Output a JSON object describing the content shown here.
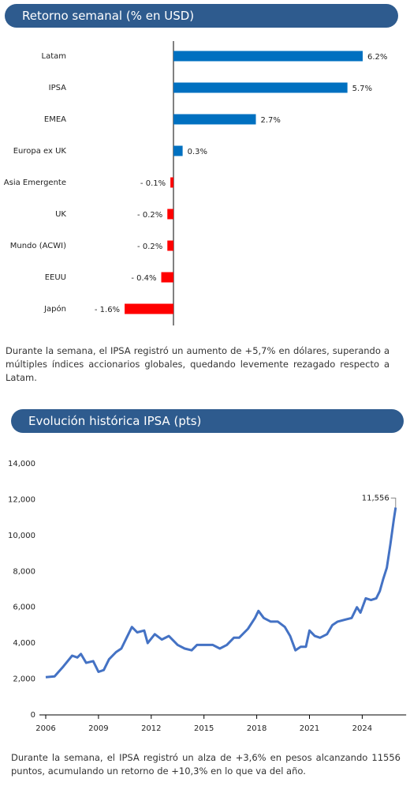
{
  "headers": [
    "Retorno semanal (% en USD)",
    "Evolución histórica IPSA (pts)"
  ],
  "paragraphs": [
    "Durante la semana, el IPSA registró un aumento de +5,7% en dólares, superando a múltiples índices accionarios globales, quedando levemente rezagado respecto a Latam.",
    "Durante la semana, el IPSA registró un alza de +3,6% en pesos alcanzando 11556 puntos, acumulando un retorno de +10,3% en lo que va del año."
  ],
  "chart_data": [
    {
      "type": "hbar",
      "categories": [
        "Latam",
        "IPSA",
        "EMEA",
        "Europa ex UK",
        "Asia Emergente",
        "UK",
        "Mundo (ACWI)",
        "EEUU",
        "Japón"
      ],
      "values": [
        6.2,
        5.7,
        2.7,
        0.3,
        -0.1,
        -0.2,
        -0.2,
        -0.4,
        -1.6
      ],
      "value_labels": [
        "6.2%",
        "5.7%",
        "2.7%",
        "0.3%",
        "- 0.1%",
        "- 0.2%",
        "- 0.2%",
        "- 0.4%",
        "- 1.6%"
      ],
      "color": "#0070c0",
      "negative_color": "#ff0000"
    },
    {
      "type": "line",
      "x": [
        2006.0,
        2006.5,
        2007.0,
        2007.5,
        2007.8,
        2008.0,
        2008.3,
        2008.7,
        2009.0,
        2009.3,
        2009.6,
        2010.0,
        2010.3,
        2010.6,
        2010.9,
        2011.2,
        2011.6,
        2011.8,
        2012.2,
        2012.6,
        2013.0,
        2013.5,
        2013.9,
        2014.3,
        2014.6,
        2015.0,
        2015.5,
        2015.9,
        2016.3,
        2016.7,
        2017.0,
        2017.5,
        2017.9,
        2018.1,
        2018.4,
        2018.8,
        2019.2,
        2019.6,
        2019.9,
        2020.2,
        2020.5,
        2020.8,
        2021.0,
        2021.3,
        2021.6,
        2022.0,
        2022.3,
        2022.6,
        2023.0,
        2023.4,
        2023.7,
        2023.9,
        2024.2,
        2024.5,
        2024.8,
        2025.0,
        2025.2,
        2025.4,
        2025.6,
        2025.8,
        2025.9
      ],
      "values": [
        2100,
        2150,
        2700,
        3300,
        3200,
        3400,
        2900,
        3000,
        2400,
        2500,
        3100,
        3500,
        3700,
        4300,
        4900,
        4600,
        4700,
        4000,
        4500,
        4200,
        4400,
        3900,
        3700,
        3600,
        3900,
        3900,
        3900,
        3700,
        3900,
        4300,
        4300,
        4800,
        5400,
        5800,
        5400,
        5200,
        5200,
        4900,
        4400,
        3600,
        3800,
        3800,
        4700,
        4400,
        4300,
        4500,
        5000,
        5200,
        5300,
        5400,
        6000,
        5700,
        6500,
        6400,
        6500,
        6900,
        7600,
        8200,
        9500,
        10900,
        11556
      ],
      "color": "#4472c4",
      "annotation": "11,556",
      "xlim": [
        2006,
        2026.5
      ],
      "xticks": [
        2006,
        2009,
        2012,
        2015,
        2018,
        2021,
        2024
      ],
      "ylim": [
        0,
        14000
      ],
      "yticks": [
        0,
        {
          "value": 2000,
          "label": "2,000"
        },
        {
          "value": 4000,
          "label": "4,000"
        },
        {
          "value": 6000,
          "label": "6,000"
        },
        {
          "value": 8000,
          "label": "8,000"
        },
        {
          "value": 10000,
          "label": "10,000"
        },
        {
          "value": 12000,
          "label": "12,000"
        },
        {
          "value": 14000,
          "label": "14,000"
        }
      ]
    }
  ]
}
